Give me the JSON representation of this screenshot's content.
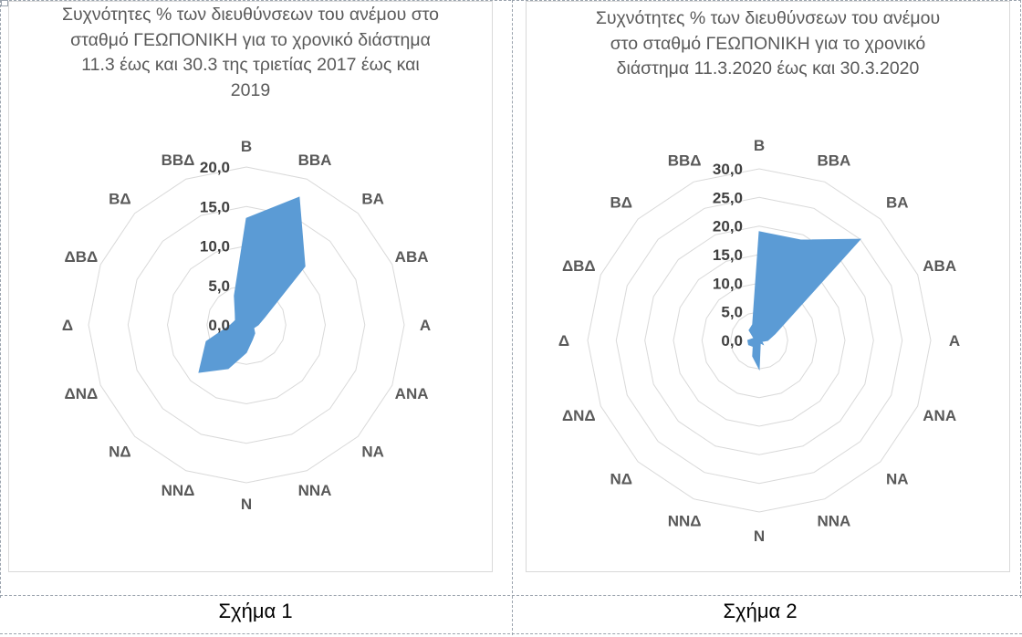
{
  "colors": {
    "fill": "#5b9bd5",
    "grid": "#d9d9d9",
    "label": "#595959",
    "tick": "#404040"
  },
  "directions": [
    "Β",
    "ΒΒΑ",
    "ΒΑ",
    "ΑΒΑ",
    "Α",
    "ΑΝΑ",
    "ΝΑ",
    "ΝΝΑ",
    "Ν",
    "ΝΝΔ",
    "ΝΔ",
    "ΔΝΔ",
    "Δ",
    "ΔΒΔ",
    "ΒΔ",
    "ΒΒΔ"
  ],
  "captions": {
    "left": "Σχήμα 1",
    "right": "Σχήμα 2"
  },
  "chart_data": [
    {
      "type": "radar",
      "title": "Συχνότητες % των διευθύνσεων του ανέμου στο σταθμό ΓΕΩΠΟΝΙΚΗ για το χρονικό διάστημα 11.3 έως και 30.3 της τριετίας 2017 έως και 2019",
      "categories": [
        "Β",
        "ΒΒΑ",
        "ΒΑ",
        "ΑΒΑ",
        "Α",
        "ΑΝΑ",
        "ΝΑ",
        "ΝΝΑ",
        "Ν",
        "ΝΝΔ",
        "ΝΔ",
        "ΔΝΔ",
        "Δ",
        "ΔΒΔ",
        "ΒΔ",
        "ΒΒΔ"
      ],
      "values": [
        13.5,
        17.5,
        10.5,
        2.5,
        1.5,
        1.0,
        1.5,
        2.0,
        3.5,
        6.0,
        8.5,
        5.5,
        2.0,
        1.5,
        2.0,
        4.0
      ],
      "ticks": [
        "0,0",
        "5,0",
        "10,0",
        "15,0",
        "20,0"
      ],
      "ylim": [
        0,
        20
      ],
      "grid": true,
      "legend": "none"
    },
    {
      "type": "radar",
      "title": "Συχνότητες % των διευθύνσεων του ανέμου στο σταθμό ΓΕΩΠΟΝΙΚΗ για το χρονικό διάστημα 11.3.2020 έως και 30.3.2020",
      "categories": [
        "Β",
        "ΒΒΑ",
        "ΒΑ",
        "ΑΒΑ",
        "Α",
        "ΑΝΑ",
        "ΝΑ",
        "ΝΝΑ",
        "Ν",
        "ΝΝΔ",
        "ΝΔ",
        "ΔΝΔ",
        "Δ",
        "ΔΒΔ",
        "ΒΔ",
        "ΒΒΔ"
      ],
      "values": [
        19.0,
        19.0,
        25.0,
        3.0,
        1.5,
        0.5,
        1.0,
        0.5,
        5.0,
        3.0,
        1.5,
        2.0,
        2.0,
        1.0,
        2.5,
        3.0
      ],
      "ticks": [
        "0,0",
        "5,0",
        "10,0",
        "15,0",
        "20,0",
        "25,0",
        "30,0"
      ],
      "ylim": [
        0,
        30
      ],
      "grid": true,
      "legend": "none"
    }
  ]
}
